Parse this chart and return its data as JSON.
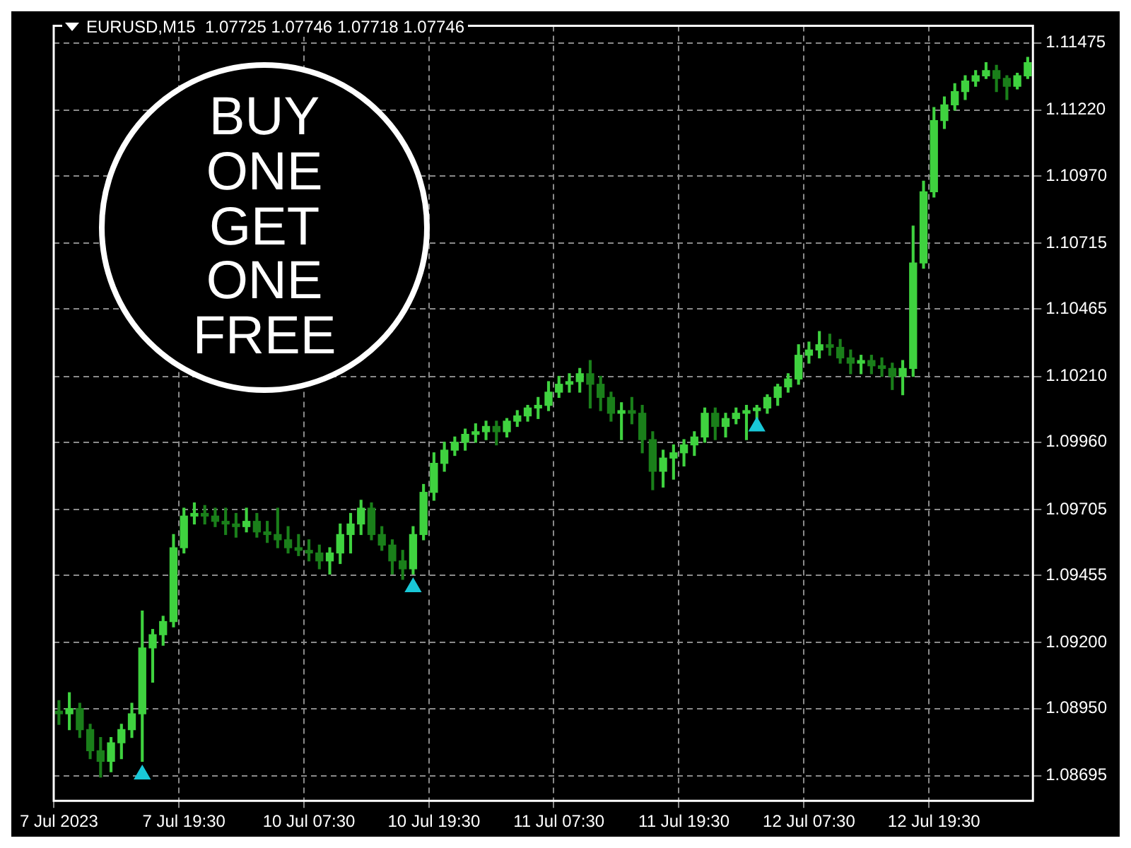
{
  "chart_data": {
    "type": "candlestick",
    "title": "EURUSD,M15  1.07725 1.07746 1.07718 1.07746",
    "categories": [
      "7 Jul 2023",
      null,
      null,
      null,
      null,
      null,
      null,
      null,
      null,
      null,
      null,
      null,
      "7 Jul 19:30",
      null,
      null,
      null,
      null,
      null,
      null,
      null,
      null,
      null,
      null,
      null,
      "10 Jul 07:30",
      null,
      null,
      null,
      null,
      null,
      null,
      null,
      null,
      null,
      null,
      null,
      "10 Jul 19:30",
      null,
      null,
      null,
      null,
      null,
      null,
      null,
      null,
      null,
      null,
      null,
      "11 Jul 07:30",
      null,
      null,
      null,
      null,
      null,
      null,
      null,
      null,
      null,
      null,
      null,
      "11 Jul 19:30",
      null,
      null,
      null,
      null,
      null,
      null,
      null,
      null,
      null,
      null,
      null,
      "12 Jul 07:30",
      null,
      null,
      null,
      null,
      null,
      null,
      null,
      null,
      null,
      null,
      null,
      "12 Jul 19:30",
      null,
      null,
      null,
      null,
      null,
      null,
      null,
      null,
      null
    ],
    "ohlc": [
      [
        1.0894,
        1.0898,
        1.0889,
        1.0893
      ],
      [
        1.0893,
        1.0901,
        1.0887,
        1.0895
      ],
      [
        1.0895,
        1.0897,
        1.0884,
        1.0887
      ],
      [
        1.0887,
        1.0889,
        1.0876,
        1.0879
      ],
      [
        1.0879,
        1.0884,
        1.0869,
        1.0875
      ],
      [
        1.0875,
        1.0884,
        1.0871,
        1.0882
      ],
      [
        1.0882,
        1.0889,
        1.0876,
        1.0887
      ],
      [
        1.0887,
        1.0897,
        1.0884,
        1.0893
      ],
      [
        1.0893,
        1.0932,
        1.0875,
        1.0918
      ],
      [
        1.0918,
        1.0925,
        1.0905,
        1.0923
      ],
      [
        1.0923,
        1.093,
        1.0919,
        1.0928
      ],
      [
        1.0928,
        1.0961,
        1.0926,
        1.0956
      ],
      [
        1.0956,
        1.0971,
        1.0954,
        1.0968
      ],
      [
        1.0968,
        1.0973,
        1.0965,
        1.0969
      ],
      [
        1.0969,
        1.0972,
        1.0965,
        1.0968
      ],
      [
        1.0968,
        1.0971,
        1.0964,
        1.0966
      ],
      [
        1.0966,
        1.0971,
        1.0961,
        1.0965
      ],
      [
        1.0965,
        1.0969,
        1.096,
        1.0964
      ],
      [
        1.0964,
        1.0971,
        1.0962,
        1.0966
      ],
      [
        1.0966,
        1.0969,
        1.096,
        1.0962
      ],
      [
        1.0962,
        1.0966,
        1.0958,
        1.0961
      ],
      [
        1.0961,
        1.0971,
        1.0956,
        1.0959
      ],
      [
        1.0959,
        1.0964,
        1.0954,
        1.0956
      ],
      [
        1.0956,
        1.0961,
        1.0953,
        1.0955
      ],
      [
        1.0955,
        1.0959,
        1.0951,
        1.0954
      ],
      [
        1.0954,
        1.0957,
        1.0948,
        1.0951
      ],
      [
        1.0951,
        1.0956,
        1.0946,
        1.0954
      ],
      [
        1.0954,
        1.0965,
        1.095,
        1.0961
      ],
      [
        1.0961,
        1.0969,
        1.0954,
        1.0965
      ],
      [
        1.0965,
        1.0974,
        1.0961,
        1.0971
      ],
      [
        1.0971,
        1.0973,
        1.0959,
        1.0961
      ],
      [
        1.0961,
        1.0964,
        1.0955,
        1.0957
      ],
      [
        1.0957,
        1.0959,
        1.0946,
        1.0951
      ],
      [
        1.0951,
        1.0955,
        1.0944,
        1.0948
      ],
      [
        1.0948,
        1.0964,
        1.0946,
        1.0961
      ],
      [
        1.0961,
        1.098,
        1.0959,
        1.0977
      ],
      [
        1.0977,
        1.0992,
        1.0974,
        1.0988
      ],
      [
        1.0988,
        1.0996,
        1.0985,
        1.0993
      ],
      [
        1.0993,
        1.0998,
        1.0991,
        1.0996
      ],
      [
        1.0996,
        1.1001,
        1.0993,
        1.0999
      ],
      [
        1.0999,
        1.1003,
        1.0996,
        1.1
      ],
      [
        1.1,
        1.1004,
        1.0997,
        1.1002
      ],
      [
        1.1002,
        1.1004,
        1.0995,
        1.1
      ],
      [
        1.1,
        1.1005,
        1.0998,
        1.1004
      ],
      [
        1.1004,
        1.1008,
        1.1002,
        1.1006
      ],
      [
        1.1006,
        1.101,
        1.1004,
        1.1009
      ],
      [
        1.1009,
        1.1013,
        1.1005,
        1.101
      ],
      [
        1.101,
        1.1019,
        1.1008,
        1.1015
      ],
      [
        1.1015,
        1.1021,
        1.1013,
        1.1018
      ],
      [
        1.1018,
        1.1022,
        1.1015,
        1.1019
      ],
      [
        1.1019,
        1.1024,
        1.1015,
        1.1022
      ],
      [
        1.1022,
        1.1027,
        1.1009,
        1.1018
      ],
      [
        1.1018,
        1.1021,
        1.1008,
        1.1013
      ],
      [
        1.1013,
        1.1015,
        1.1004,
        1.1007
      ],
      [
        1.1007,
        1.1011,
        1.0997,
        1.1008
      ],
      [
        1.1008,
        1.1013,
        1.1003,
        1.1007
      ],
      [
        1.1007,
        1.101,
        1.0992,
        1.0997
      ],
      [
        1.0997,
        1.1,
        1.0978,
        1.0985
      ],
      [
        1.0985,
        1.0993,
        1.0979,
        1.099
      ],
      [
        1.099,
        1.0995,
        1.0982,
        1.0992
      ],
      [
        1.0992,
        1.0997,
        1.0987,
        1.0995
      ],
      [
        1.0995,
        1.1,
        1.0991,
        1.0998
      ],
      [
        1.0998,
        1.1009,
        1.0996,
        1.1007
      ],
      [
        1.1007,
        1.1009,
        1.0997,
        1.1002
      ],
      [
        1.1002,
        1.1007,
        1.0998,
        1.1005
      ],
      [
        1.1005,
        1.1009,
        1.1003,
        1.1007
      ],
      [
        1.1007,
        1.101,
        1.0997,
        1.1008
      ],
      [
        1.1008,
        1.101,
        1.1005,
        1.1009
      ],
      [
        1.1009,
        1.1014,
        1.1007,
        1.1013
      ],
      [
        1.1013,
        1.1018,
        1.101,
        1.1017
      ],
      [
        1.1017,
        1.1022,
        1.1015,
        1.102
      ],
      [
        1.102,
        1.1033,
        1.1018,
        1.1029
      ],
      [
        1.1029,
        1.1034,
        1.1026,
        1.1031
      ],
      [
        1.1031,
        1.1038,
        1.1028,
        1.1033
      ],
      [
        1.1033,
        1.1037,
        1.1029,
        1.1032
      ],
      [
        1.1032,
        1.1035,
        1.1026,
        1.1028
      ],
      [
        1.1028,
        1.1031,
        1.1022,
        1.1026
      ],
      [
        1.1026,
        1.1029,
        1.1022,
        1.1027
      ],
      [
        1.1027,
        1.1029,
        1.1022,
        1.1025
      ],
      [
        1.1025,
        1.1028,
        1.1021,
        1.1024
      ],
      [
        1.1024,
        1.1026,
        1.1016,
        1.1021
      ],
      [
        1.1021,
        1.1027,
        1.1014,
        1.1024
      ],
      [
        1.1024,
        1.1078,
        1.1021,
        1.1064
      ],
      [
        1.1064,
        1.1095,
        1.1062,
        1.1091
      ],
      [
        1.1091,
        1.1123,
        1.1089,
        1.1118
      ],
      [
        1.1118,
        1.1127,
        1.1115,
        1.1124
      ],
      [
        1.1124,
        1.1132,
        1.1122,
        1.1129
      ],
      [
        1.1129,
        1.1135,
        1.1126,
        1.1133
      ],
      [
        1.1133,
        1.1137,
        1.1131,
        1.1135
      ],
      [
        1.1135,
        1.114,
        1.1134,
        1.1137
      ],
      [
        1.1137,
        1.1139,
        1.1129,
        1.1134
      ],
      [
        1.1134,
        1.1135,
        1.1126,
        1.1131
      ],
      [
        1.1131,
        1.1136,
        1.113,
        1.1135
      ],
      [
        1.1135,
        1.1142,
        1.1134,
        1.114
      ]
    ],
    "colors": [
      "#1a7f1a",
      "#3fd23f",
      "#1a7f1a",
      "#1a7f1a",
      "#1a7f1a",
      "#3fd23f",
      "#3fd23f",
      "#3fd23f",
      "#3fd23f",
      "#3fd23f",
      "#3fd23f",
      "#3fd23f",
      "#3fd23f",
      "#3fd23f",
      "#1a7f1a",
      "#1a7f1a",
      "#1a7f1a",
      "#1a7f1a",
      "#3fd23f",
      "#1a7f1a",
      "#1a7f1a",
      "#1a7f1a",
      "#1a7f1a",
      "#1a7f1a",
      "#1a7f1a",
      "#1a7f1a",
      "#3fd23f",
      "#3fd23f",
      "#3fd23f",
      "#3fd23f",
      "#1a7f1a",
      "#1a7f1a",
      "#1a7f1a",
      "#1a7f1a",
      "#3fd23f",
      "#3fd23f",
      "#3fd23f",
      "#3fd23f",
      "#3fd23f",
      "#3fd23f",
      "#3fd23f",
      "#3fd23f",
      "#1a7f1a",
      "#3fd23f",
      "#3fd23f",
      "#3fd23f",
      "#3fd23f",
      "#3fd23f",
      "#3fd23f",
      "#3fd23f",
      "#3fd23f",
      "#1a7f1a",
      "#1a7f1a",
      "#1a7f1a",
      "#3fd23f",
      "#1a7f1a",
      "#1a7f1a",
      "#1a7f1a",
      "#3fd23f",
      "#3fd23f",
      "#3fd23f",
      "#3fd23f",
      "#3fd23f",
      "#1a7f1a",
      "#3fd23f",
      "#3fd23f",
      "#3fd23f",
      "#3fd23f",
      "#3fd23f",
      "#3fd23f",
      "#3fd23f",
      "#3fd23f",
      "#3fd23f",
      "#3fd23f",
      "#1a7f1a",
      "#1a7f1a",
      "#1a7f1a",
      "#3fd23f",
      "#1a7f1a",
      "#1a7f1a",
      "#1a7f1a",
      "#3fd23f",
      "#3fd23f",
      "#3fd23f",
      "#3fd23f",
      "#3fd23f",
      "#3fd23f",
      "#3fd23f",
      "#3fd23f",
      "#3fd23f",
      "#1a7f1a",
      "#1a7f1a",
      "#3fd23f",
      "#3fd23f"
    ],
    "series": [
      {
        "type": "scatter",
        "color": "#19c8d8",
        "marker": "triangle",
        "values": [
          null,
          null,
          null,
          null,
          null,
          null,
          null,
          null,
          1.087,
          null,
          null,
          null,
          null,
          null,
          null,
          null,
          null,
          null,
          null,
          null,
          null,
          null,
          null,
          null,
          null,
          null,
          null,
          null,
          null,
          null,
          null,
          null,
          null,
          null,
          1.0941,
          null,
          null,
          null,
          null,
          null,
          null,
          null,
          null,
          null,
          null,
          null,
          null,
          null,
          null,
          null,
          null,
          null,
          null,
          null,
          null,
          null,
          null,
          null,
          null,
          null,
          null,
          null,
          null,
          null,
          null,
          null,
          null,
          1.1002,
          null,
          null,
          null,
          null,
          null,
          null,
          null,
          null,
          null,
          null,
          null,
          null,
          null,
          null,
          null,
          null,
          null,
          null,
          null,
          null,
          null,
          null,
          null,
          null,
          null,
          null
        ]
      }
    ],
    "ylim": [
      1.086,
      1.1154
    ],
    "yticks": [
      {
        "value": 1.11475,
        "label": "1.11475"
      },
      {
        "value": 1.1122,
        "label": "1.11220"
      },
      {
        "value": 1.1097,
        "label": "1.10970"
      },
      {
        "value": 1.10715,
        "label": "1.10715"
      },
      {
        "value": 1.10465,
        "label": "1.10465"
      },
      {
        "value": 1.1021,
        "label": "1.10210"
      },
      {
        "value": 1.0996,
        "label": "1.09960"
      },
      {
        "value": 1.09705,
        "label": "1.09705"
      },
      {
        "value": 1.09455,
        "label": "1.09455"
      },
      {
        "value": 1.092,
        "label": "1.09200"
      },
      {
        "value": 1.0895,
        "label": "1.08950"
      },
      {
        "value": 1.08695,
        "label": "1.08695"
      }
    ],
    "grid": true,
    "annotations": [
      "BUY ONE GET ONE FREE"
    ]
  }
}
